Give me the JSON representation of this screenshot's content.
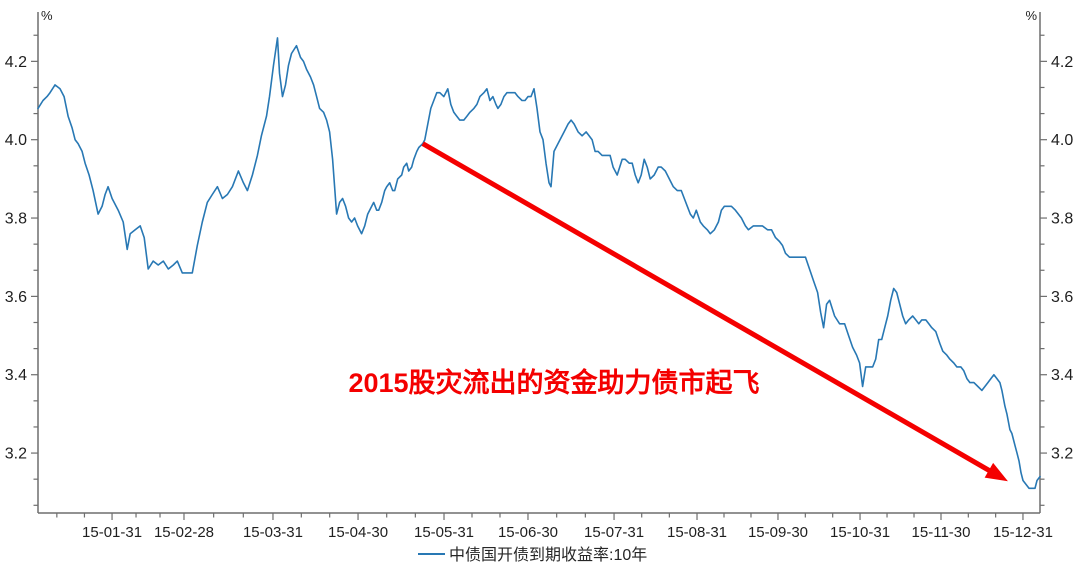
{
  "chart_data": {
    "type": "line",
    "title": "",
    "colors": {
      "axis": "#6e6e6e",
      "label": "#1f1f1f",
      "background": "#ffffff"
    },
    "y_axis": {
      "unit": "%",
      "range": [
        3.047,
        4.326
      ],
      "major_ticks": [
        3.2,
        3.4,
        3.6,
        3.8,
        4.0,
        4.2
      ],
      "minor_ticks_per_interval": 2,
      "mirrored_right": true,
      "grid": "off"
    },
    "x_axis": {
      "type": "time",
      "minor_ticks_per_interval": 2,
      "ticks": [
        {
          "t": 0.0739,
          "label": "15-01-31"
        },
        {
          "t": 0.1457,
          "label": "15-02-28"
        },
        {
          "t": 0.2345,
          "label": "15-03-31"
        },
        {
          "t": 0.3194,
          "label": "15-04-30"
        },
        {
          "t": 0.4052,
          "label": "15-05-31"
        },
        {
          "t": 0.489,
          "label": "15-06-30"
        },
        {
          "t": 0.5749,
          "label": "15-07-31"
        },
        {
          "t": 0.6577,
          "label": "15-08-31"
        },
        {
          "t": 0.7385,
          "label": "15-09-30"
        },
        {
          "t": 0.8204,
          "label": "15-10-31"
        },
        {
          "t": 0.9012,
          "label": "15-11-30"
        },
        {
          "t": 0.983,
          "label": "15-12-31"
        }
      ]
    },
    "legend": {
      "position": "bottom-center"
    },
    "series": [
      {
        "name": "中债国开债到期收益率:10年",
        "color": "#2878b4",
        "points": [
          [
            0.0,
            4.08
          ],
          [
            0.005,
            4.1
          ],
          [
            0.009,
            4.11
          ],
          [
            0.012,
            4.12
          ],
          [
            0.017,
            4.14
          ],
          [
            0.022,
            4.13
          ],
          [
            0.026,
            4.11
          ],
          [
            0.03,
            4.06
          ],
          [
            0.034,
            4.03
          ],
          [
            0.037,
            4.0
          ],
          [
            0.04,
            3.99
          ],
          [
            0.044,
            3.97
          ],
          [
            0.047,
            3.94
          ],
          [
            0.051,
            3.91
          ],
          [
            0.055,
            3.87
          ],
          [
            0.06,
            3.81
          ],
          [
            0.064,
            3.83
          ],
          [
            0.067,
            3.86
          ],
          [
            0.07,
            3.88
          ],
          [
            0.074,
            3.85
          ],
          [
            0.08,
            3.82
          ],
          [
            0.085,
            3.79
          ],
          [
            0.089,
            3.72
          ],
          [
            0.092,
            3.76
          ],
          [
            0.097,
            3.77
          ],
          [
            0.102,
            3.78
          ],
          [
            0.106,
            3.75
          ],
          [
            0.11,
            3.67
          ],
          [
            0.115,
            3.69
          ],
          [
            0.12,
            3.68
          ],
          [
            0.125,
            3.69
          ],
          [
            0.13,
            3.67
          ],
          [
            0.135,
            3.68
          ],
          [
            0.139,
            3.69
          ],
          [
            0.144,
            3.66
          ],
          [
            0.15,
            3.66
          ],
          [
            0.154,
            3.66
          ],
          [
            0.159,
            3.73
          ],
          [
            0.164,
            3.79
          ],
          [
            0.169,
            3.84
          ],
          [
            0.174,
            3.86
          ],
          [
            0.179,
            3.88
          ],
          [
            0.184,
            3.85
          ],
          [
            0.189,
            3.86
          ],
          [
            0.194,
            3.88
          ],
          [
            0.2,
            3.92
          ],
          [
            0.205,
            3.89
          ],
          [
            0.209,
            3.87
          ],
          [
            0.214,
            3.91
          ],
          [
            0.219,
            3.96
          ],
          [
            0.223,
            4.01
          ],
          [
            0.228,
            4.06
          ],
          [
            0.231,
            4.11
          ],
          [
            0.235,
            4.19
          ],
          [
            0.239,
            4.26
          ],
          [
            0.241,
            4.17
          ],
          [
            0.244,
            4.11
          ],
          [
            0.247,
            4.14
          ],
          [
            0.25,
            4.19
          ],
          [
            0.253,
            4.22
          ],
          [
            0.258,
            4.24
          ],
          [
            0.262,
            4.21
          ],
          [
            0.265,
            4.2
          ],
          [
            0.268,
            4.18
          ],
          [
            0.272,
            4.16
          ],
          [
            0.275,
            4.14
          ],
          [
            0.278,
            4.11
          ],
          [
            0.281,
            4.08
          ],
          [
            0.285,
            4.07
          ],
          [
            0.288,
            4.05
          ],
          [
            0.291,
            4.02
          ],
          [
            0.294,
            3.95
          ],
          [
            0.296,
            3.88
          ],
          [
            0.298,
            3.81
          ],
          [
            0.301,
            3.84
          ],
          [
            0.304,
            3.85
          ],
          [
            0.307,
            3.83
          ],
          [
            0.31,
            3.8
          ],
          [
            0.313,
            3.79
          ],
          [
            0.316,
            3.8
          ],
          [
            0.319,
            3.78
          ],
          [
            0.323,
            3.76
          ],
          [
            0.326,
            3.78
          ],
          [
            0.329,
            3.81
          ],
          [
            0.333,
            3.83
          ],
          [
            0.335,
            3.84
          ],
          [
            0.338,
            3.82
          ],
          [
            0.34,
            3.82
          ],
          [
            0.343,
            3.84
          ],
          [
            0.346,
            3.87
          ],
          [
            0.348,
            3.88
          ],
          [
            0.351,
            3.89
          ],
          [
            0.354,
            3.87
          ],
          [
            0.356,
            3.87
          ],
          [
            0.359,
            3.9
          ],
          [
            0.363,
            3.91
          ],
          [
            0.365,
            3.93
          ],
          [
            0.368,
            3.94
          ],
          [
            0.37,
            3.92
          ],
          [
            0.373,
            3.93
          ],
          [
            0.375,
            3.95
          ],
          [
            0.378,
            3.97
          ],
          [
            0.38,
            3.98
          ],
          [
            0.384,
            3.99
          ],
          [
            0.386,
            4.0
          ],
          [
            0.389,
            4.04
          ],
          [
            0.392,
            4.08
          ],
          [
            0.395,
            4.1
          ],
          [
            0.398,
            4.12
          ],
          [
            0.401,
            4.12
          ],
          [
            0.405,
            4.11
          ],
          [
            0.409,
            4.13
          ],
          [
            0.412,
            4.09
          ],
          [
            0.415,
            4.07
          ],
          [
            0.418,
            4.06
          ],
          [
            0.421,
            4.05
          ],
          [
            0.425,
            4.05
          ],
          [
            0.428,
            4.06
          ],
          [
            0.431,
            4.07
          ],
          [
            0.435,
            4.08
          ],
          [
            0.438,
            4.09
          ],
          [
            0.441,
            4.11
          ],
          [
            0.445,
            4.12
          ],
          [
            0.448,
            4.13
          ],
          [
            0.451,
            4.1
          ],
          [
            0.454,
            4.11
          ],
          [
            0.457,
            4.09
          ],
          [
            0.459,
            4.08
          ],
          [
            0.462,
            4.09
          ],
          [
            0.465,
            4.11
          ],
          [
            0.468,
            4.12
          ],
          [
            0.472,
            4.12
          ],
          [
            0.476,
            4.12
          ],
          [
            0.479,
            4.11
          ],
          [
            0.483,
            4.1
          ],
          [
            0.486,
            4.1
          ],
          [
            0.489,
            4.11
          ],
          [
            0.492,
            4.11
          ],
          [
            0.495,
            4.13
          ],
          [
            0.498,
            4.08
          ],
          [
            0.501,
            4.02
          ],
          [
            0.504,
            4.0
          ],
          [
            0.507,
            3.94
          ],
          [
            0.51,
            3.89
          ],
          [
            0.512,
            3.88
          ],
          [
            0.515,
            3.97
          ],
          [
            0.517,
            3.98
          ],
          [
            0.521,
            4.0
          ],
          [
            0.525,
            4.02
          ],
          [
            0.529,
            4.04
          ],
          [
            0.532,
            4.05
          ],
          [
            0.535,
            4.04
          ],
          [
            0.539,
            4.02
          ],
          [
            0.543,
            4.01
          ],
          [
            0.547,
            4.02
          ],
          [
            0.55,
            4.01
          ],
          [
            0.553,
            4.0
          ],
          [
            0.556,
            3.97
          ],
          [
            0.559,
            3.97
          ],
          [
            0.563,
            3.96
          ],
          [
            0.567,
            3.96
          ],
          [
            0.571,
            3.96
          ],
          [
            0.574,
            3.93
          ],
          [
            0.578,
            3.91
          ],
          [
            0.583,
            3.95
          ],
          [
            0.586,
            3.95
          ],
          [
            0.59,
            3.94
          ],
          [
            0.593,
            3.94
          ],
          [
            0.596,
            3.91
          ],
          [
            0.599,
            3.89
          ],
          [
            0.602,
            3.91
          ],
          [
            0.605,
            3.95
          ],
          [
            0.608,
            3.93
          ],
          [
            0.611,
            3.9
          ],
          [
            0.615,
            3.91
          ],
          [
            0.619,
            3.93
          ],
          [
            0.622,
            3.93
          ],
          [
            0.626,
            3.92
          ],
          [
            0.63,
            3.9
          ],
          [
            0.634,
            3.88
          ],
          [
            0.638,
            3.87
          ],
          [
            0.642,
            3.87
          ],
          [
            0.645,
            3.85
          ],
          [
            0.648,
            3.83
          ],
          [
            0.651,
            3.81
          ],
          [
            0.654,
            3.8
          ],
          [
            0.657,
            3.82
          ],
          [
            0.661,
            3.79
          ],
          [
            0.664,
            3.78
          ],
          [
            0.668,
            3.77
          ],
          [
            0.671,
            3.76
          ],
          [
            0.675,
            3.77
          ],
          [
            0.679,
            3.79
          ],
          [
            0.682,
            3.82
          ],
          [
            0.685,
            3.83
          ],
          [
            0.689,
            3.83
          ],
          [
            0.692,
            3.83
          ],
          [
            0.696,
            3.82
          ],
          [
            0.699,
            3.81
          ],
          [
            0.702,
            3.8
          ],
          [
            0.706,
            3.78
          ],
          [
            0.709,
            3.77
          ],
          [
            0.714,
            3.78
          ],
          [
            0.719,
            3.78
          ],
          [
            0.723,
            3.78
          ],
          [
            0.728,
            3.77
          ],
          [
            0.732,
            3.77
          ],
          [
            0.736,
            3.75
          ],
          [
            0.74,
            3.74
          ],
          [
            0.743,
            3.73
          ],
          [
            0.746,
            3.71
          ],
          [
            0.75,
            3.7
          ],
          [
            0.756,
            3.7
          ],
          [
            0.761,
            3.7
          ],
          [
            0.766,
            3.7
          ],
          [
            0.77,
            3.67
          ],
          [
            0.774,
            3.64
          ],
          [
            0.778,
            3.61
          ],
          [
            0.781,
            3.56
          ],
          [
            0.784,
            3.52
          ],
          [
            0.787,
            3.58
          ],
          [
            0.79,
            3.59
          ],
          [
            0.795,
            3.55
          ],
          [
            0.8,
            3.53
          ],
          [
            0.805,
            3.53
          ],
          [
            0.809,
            3.5
          ],
          [
            0.813,
            3.47
          ],
          [
            0.817,
            3.45
          ],
          [
            0.82,
            3.43
          ],
          [
            0.823,
            3.37
          ],
          [
            0.826,
            3.42
          ],
          [
            0.83,
            3.42
          ],
          [
            0.833,
            3.42
          ],
          [
            0.836,
            3.44
          ],
          [
            0.839,
            3.49
          ],
          [
            0.842,
            3.49
          ],
          [
            0.845,
            3.52
          ],
          [
            0.848,
            3.55
          ],
          [
            0.851,
            3.59
          ],
          [
            0.854,
            3.62
          ],
          [
            0.857,
            3.61
          ],
          [
            0.86,
            3.58
          ],
          [
            0.863,
            3.55
          ],
          [
            0.866,
            3.53
          ],
          [
            0.869,
            3.54
          ],
          [
            0.873,
            3.55
          ],
          [
            0.876,
            3.54
          ],
          [
            0.879,
            3.53
          ],
          [
            0.882,
            3.54
          ],
          [
            0.886,
            3.54
          ],
          [
            0.889,
            3.53
          ],
          [
            0.892,
            3.52
          ],
          [
            0.896,
            3.51
          ],
          [
            0.9,
            3.48
          ],
          [
            0.903,
            3.46
          ],
          [
            0.907,
            3.45
          ],
          [
            0.91,
            3.44
          ],
          [
            0.914,
            3.43
          ],
          [
            0.917,
            3.42
          ],
          [
            0.921,
            3.42
          ],
          [
            0.924,
            3.41
          ],
          [
            0.927,
            3.39
          ],
          [
            0.93,
            3.38
          ],
          [
            0.934,
            3.38
          ],
          [
            0.938,
            3.37
          ],
          [
            0.942,
            3.36
          ],
          [
            0.945,
            3.37
          ],
          [
            0.948,
            3.38
          ],
          [
            0.951,
            3.39
          ],
          [
            0.954,
            3.4
          ],
          [
            0.957,
            3.39
          ],
          [
            0.96,
            3.38
          ],
          [
            0.962,
            3.36
          ],
          [
            0.965,
            3.32
          ],
          [
            0.967,
            3.3
          ],
          [
            0.97,
            3.26
          ],
          [
            0.972,
            3.25
          ],
          [
            0.975,
            3.22
          ],
          [
            0.977,
            3.2
          ],
          [
            0.979,
            3.18
          ],
          [
            0.981,
            3.15
          ],
          [
            0.983,
            3.13
          ],
          [
            0.986,
            3.12
          ],
          [
            0.989,
            3.11
          ],
          [
            0.993,
            3.11
          ],
          [
            0.995,
            3.11
          ],
          [
            0.997,
            3.13
          ],
          [
            1.0,
            3.14
          ]
        ]
      }
    ],
    "annotation": {
      "text": "2015股灾流出的资金助力债市起飞",
      "color": "#f40000",
      "text_anchor": {
        "t": 0.515,
        "v": 3.356
      },
      "arrow": {
        "from": {
          "t": 0.384,
          "v": 3.99
        },
        "to": {
          "t": 0.968,
          "v": 3.128
        }
      }
    }
  }
}
